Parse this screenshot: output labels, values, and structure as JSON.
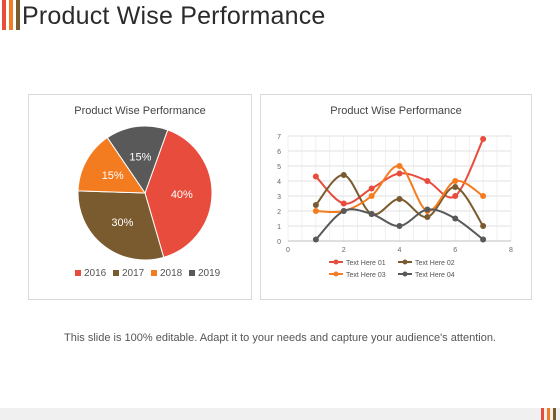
{
  "slide": {
    "title": "Product Wise Performance",
    "footer": "This slide is 100% editable. Adapt it to your needs and capture your audience's attention."
  },
  "colors": {
    "c2016": "#e84c3d",
    "c2017": "#7a5a2f",
    "c2018": "#f47c20",
    "c2019": "#595959",
    "accent1": "#e84c3d",
    "accent2": "#f47c20",
    "accent3": "#7a5a2f"
  },
  "chart_data": [
    {
      "type": "pie",
      "title": "Product Wise Performance",
      "categories": [
        "2016",
        "2017",
        "2018",
        "2019"
      ],
      "values": [
        40,
        30,
        15,
        15
      ],
      "labels": [
        "40%",
        "30%",
        "15%",
        "15%"
      ],
      "legend": "bottom"
    },
    {
      "type": "line",
      "title": "Product Wise Performance",
      "x": [
        1,
        2,
        3,
        4,
        5,
        6,
        7
      ],
      "xlim": [
        0,
        8
      ],
      "ylim": [
        0,
        7
      ],
      "xticks": [
        "0",
        "2",
        "4",
        "6",
        "8"
      ],
      "yticks": [
        "0",
        "1",
        "2",
        "3",
        "4",
        "5",
        "6",
        "7"
      ],
      "grid": true,
      "legend": "bottom",
      "series": [
        {
          "name": "Text Here 01",
          "values": [
            4.3,
            2.5,
            3.5,
            4.5,
            4.0,
            3.0,
            6.8
          ]
        },
        {
          "name": "Text Here 02",
          "values": [
            2.4,
            4.4,
            1.8,
            2.8,
            1.6,
            3.6,
            1.0
          ]
        },
        {
          "name": "Text Here 03",
          "values": [
            2.0,
            2.0,
            3.0,
            5.0,
            2.0,
            4.0,
            3.0
          ]
        },
        {
          "name": "Text Here 04",
          "values": [
            0.1,
            2.0,
            1.8,
            1.0,
            2.1,
            1.5,
            0.1
          ]
        }
      ]
    }
  ]
}
